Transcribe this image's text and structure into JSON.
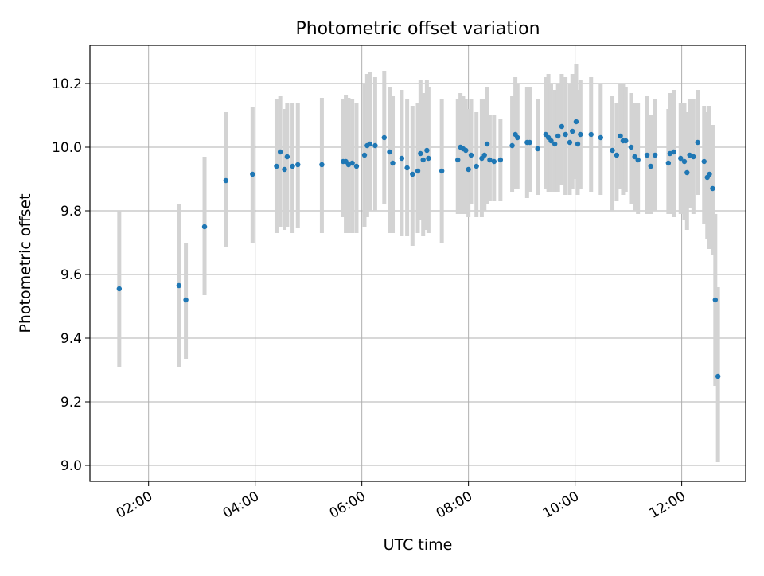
{
  "chart_data": {
    "type": "scatter",
    "title": "Photometric offset variation",
    "xlabel": "UTC time",
    "ylabel": "Photometric offset",
    "xlim": [
      0.9,
      13.2
    ],
    "ylim": [
      8.95,
      10.32
    ],
    "x_ticks": [
      {
        "value": 2,
        "label": "02:00"
      },
      {
        "value": 4,
        "label": "04:00"
      },
      {
        "value": 6,
        "label": "06:00"
      },
      {
        "value": 8,
        "label": "08:00"
      },
      {
        "value": 10,
        "label": "10:00"
      },
      {
        "value": 12,
        "label": "12:00"
      }
    ],
    "y_ticks": [
      {
        "value": 9.0,
        "label": "9.0"
      },
      {
        "value": 9.2,
        "label": "9.2"
      },
      {
        "value": 9.4,
        "label": "9.4"
      },
      {
        "value": 9.6,
        "label": "9.6"
      },
      {
        "value": 9.8,
        "label": "9.8"
      },
      {
        "value": 10.0,
        "label": "10.0"
      },
      {
        "value": 10.2,
        "label": "10.2"
      }
    ],
    "grid": true,
    "colors": {
      "point": "#1f77b4",
      "errorbar": "#d3d3d3",
      "grid": "#b0b0b0",
      "axes": "#000000"
    },
    "series": [
      {
        "name": "Photometric offset",
        "x_hours": [
          1.45,
          2.57,
          2.7,
          3.05,
          3.45,
          3.95,
          4.4,
          4.47,
          4.55,
          4.6,
          4.7,
          4.8,
          5.25,
          5.65,
          5.7,
          5.75,
          5.82,
          5.9,
          6.05,
          6.1,
          6.15,
          6.25,
          6.42,
          6.52,
          6.58,
          6.75,
          6.85,
          6.95,
          7.05,
          7.1,
          7.15,
          7.22,
          7.25,
          7.5,
          7.8,
          7.85,
          7.9,
          7.95,
          8.0,
          8.05,
          8.15,
          8.25,
          8.3,
          8.35,
          8.4,
          8.48,
          8.6,
          8.82,
          8.88,
          8.92,
          9.1,
          9.15,
          9.3,
          9.45,
          9.5,
          9.55,
          9.62,
          9.68,
          9.75,
          9.82,
          9.9,
          9.95,
          10.02,
          10.05,
          10.1,
          10.3,
          10.48,
          10.7,
          10.78,
          10.85,
          10.9,
          10.95,
          11.05,
          11.12,
          11.18,
          11.35,
          11.42,
          11.5,
          11.75,
          11.78,
          11.85,
          11.98,
          12.05,
          12.1,
          12.15,
          12.22,
          12.3,
          12.42,
          12.48,
          12.52,
          12.58,
          12.63,
          12.68
        ],
        "y": [
          9.555,
          9.565,
          9.52,
          9.75,
          9.895,
          9.915,
          9.94,
          9.985,
          9.93,
          9.97,
          9.94,
          9.945,
          9.945,
          9.955,
          9.955,
          9.945,
          9.95,
          9.94,
          9.975,
          10.005,
          10.01,
          10.005,
          10.03,
          9.985,
          9.95,
          9.965,
          9.935,
          9.915,
          9.925,
          9.98,
          9.96,
          9.99,
          9.965,
          9.925,
          9.96,
          10.0,
          9.995,
          9.99,
          9.93,
          9.975,
          9.94,
          9.965,
          9.975,
          10.01,
          9.96,
          9.955,
          9.96,
          10.005,
          10.04,
          10.03,
          10.015,
          10.015,
          9.995,
          10.04,
          10.03,
          10.02,
          10.01,
          10.035,
          10.065,
          10.04,
          10.015,
          10.05,
          10.08,
          10.01,
          10.04,
          10.04,
          10.03,
          9.99,
          9.975,
          10.035,
          10.02,
          10.02,
          10.0,
          9.97,
          9.96,
          9.975,
          9.94,
          9.975,
          9.95,
          9.98,
          9.985,
          9.965,
          9.955,
          9.92,
          9.975,
          9.97,
          10.015,
          9.955,
          9.905,
          9.915,
          9.87,
          9.52,
          9.28
        ],
        "err_low": [
          9.31,
          9.31,
          9.335,
          9.535,
          9.685,
          9.7,
          9.73,
          9.75,
          9.74,
          9.75,
          9.73,
          9.745,
          9.73,
          9.78,
          9.73,
          9.73,
          9.73,
          9.73,
          9.75,
          9.78,
          9.8,
          9.8,
          9.82,
          9.73,
          9.73,
          9.72,
          9.72,
          9.69,
          9.73,
          9.77,
          9.72,
          9.74,
          9.73,
          9.7,
          9.79,
          9.79,
          9.79,
          9.79,
          9.78,
          9.82,
          9.78,
          9.78,
          9.8,
          9.82,
          9.83,
          9.83,
          9.83,
          9.86,
          9.87,
          9.87,
          9.84,
          9.86,
          9.85,
          9.87,
          9.86,
          9.86,
          9.86,
          9.86,
          9.88,
          9.85,
          9.85,
          9.87,
          9.9,
          9.85,
          9.87,
          9.86,
          9.85,
          9.8,
          9.83,
          9.87,
          9.85,
          9.86,
          9.82,
          9.8,
          9.79,
          9.79,
          9.79,
          9.8,
          9.79,
          9.79,
          9.78,
          9.79,
          9.77,
          9.74,
          9.81,
          9.79,
          9.85,
          9.76,
          9.71,
          9.68,
          9.66,
          9.25,
          9.01
        ],
        "err_high": [
          9.8,
          9.82,
          9.7,
          9.97,
          10.11,
          10.125,
          10.15,
          10.16,
          10.12,
          10.14,
          10.14,
          10.14,
          10.155,
          10.15,
          10.165,
          10.155,
          10.15,
          10.14,
          10.2,
          10.23,
          10.235,
          10.22,
          10.24,
          10.19,
          10.16,
          10.18,
          10.15,
          10.13,
          10.14,
          10.21,
          10.17,
          10.21,
          10.19,
          10.15,
          10.15,
          10.17,
          10.16,
          10.15,
          10.12,
          10.15,
          10.11,
          10.15,
          10.15,
          10.19,
          10.1,
          10.1,
          10.09,
          10.16,
          10.22,
          10.2,
          10.19,
          10.19,
          10.15,
          10.22,
          10.23,
          10.2,
          10.18,
          10.2,
          10.23,
          10.22,
          10.2,
          10.23,
          10.26,
          10.18,
          10.21,
          10.22,
          10.2,
          10.16,
          10.14,
          10.2,
          10.2,
          10.19,
          10.17,
          10.14,
          10.14,
          10.16,
          10.1,
          10.15,
          10.12,
          10.17,
          10.18,
          10.14,
          10.14,
          10.11,
          10.15,
          10.15,
          10.18,
          10.13,
          10.11,
          10.13,
          10.07,
          9.79,
          9.56
        ]
      }
    ]
  }
}
